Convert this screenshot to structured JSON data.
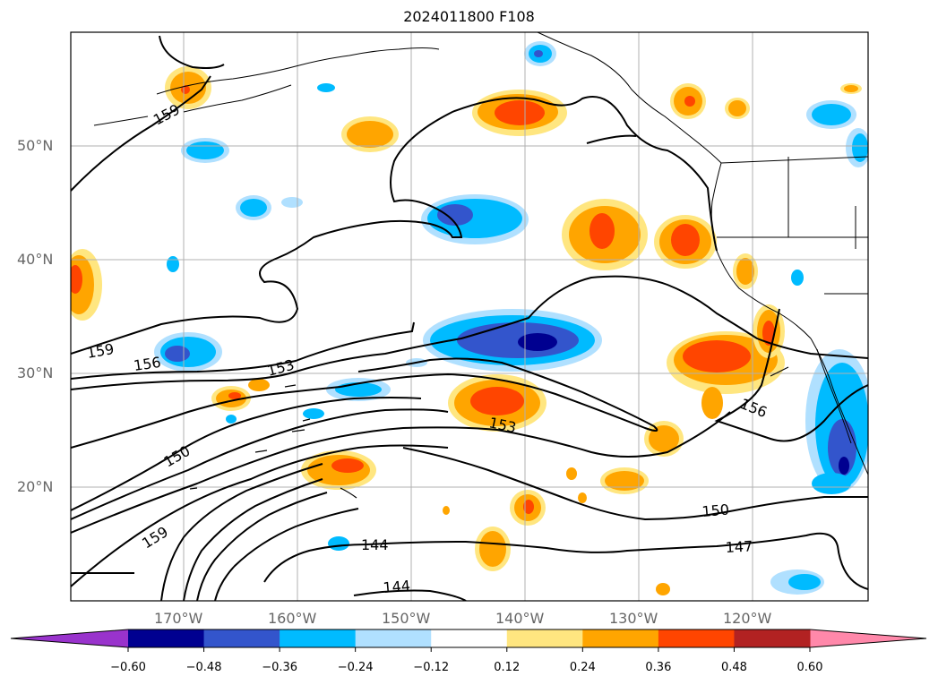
{
  "title": "2024011800 F108",
  "lat_labels": [
    "50°N",
    "40°N",
    "30°N",
    "20°N"
  ],
  "lon_labels": [
    "170°W",
    "160°W",
    "150°W",
    "140°W",
    "130°W",
    "120°W"
  ],
  "contour_labels": [
    "159",
    "159",
    "156",
    "153",
    "150",
    "159",
    "153",
    "156",
    "150",
    "147",
    "144",
    "144"
  ],
  "colorbar": {
    "ticks": [
      "−0.60",
      "−0.48",
      "−0.36",
      "−0.24",
      "−0.12",
      "0.12",
      "0.24",
      "0.36",
      "0.48",
      "0.60"
    ],
    "colors": [
      "#9933cc",
      "#000090",
      "#3355cc",
      "#00bbff",
      "#b0e0ff",
      "#ffffff",
      "#ffe680",
      "#ffa500",
      "#ff4500",
      "#b22222",
      "#ff88aa"
    ]
  },
  "colors": {
    "neg_weak": "#b0e0ff",
    "neg_mid": "#00bbff",
    "neg_strong": "#3355cc",
    "neg_max": "#000090",
    "pos_weak": "#ffe680",
    "pos_mid": "#ffa500",
    "pos_strong": "#ff4500"
  }
}
